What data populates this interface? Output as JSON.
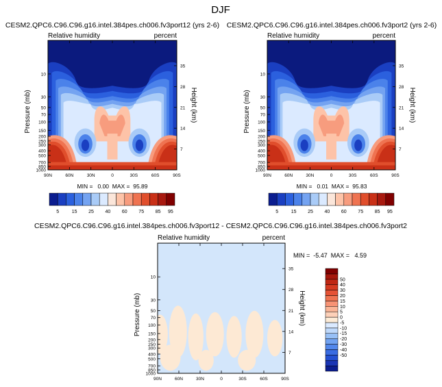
{
  "page": {
    "title": "DJF"
  },
  "colors": {
    "cb_top": [
      "#0b1d8f",
      "#1a3fc1",
      "#2b60de",
      "#4b82ea",
      "#74a3f1",
      "#a9cbf7",
      "#dbeaff",
      "#fbe6da",
      "#fdc3a8",
      "#f79c7e",
      "#ef7351",
      "#e04e2c",
      "#c93017",
      "#a8190f",
      "#800000"
    ],
    "cb_diff": [
      "#0b1d8f",
      "#1a35b5",
      "#2450d2",
      "#3a6ce2",
      "#5388ec",
      "#72a3f2",
      "#98c0f6",
      "#bfd9fb",
      "#dbeaff",
      "#fdebd6",
      "#fdd0b8",
      "#fbb597",
      "#f79375",
      "#ef7351",
      "#e55235",
      "#d53a20",
      "#bf2713",
      "#a6170c",
      "#800000"
    ],
    "field_dark": "#0b1a7e",
    "diff_bg": "#d3e6fb",
    "diff_pos": "#fde9d4"
  },
  "panels": {
    "left": {
      "title": "CESM2.QPC6.C96.C96.g16.intel.384pes.ch006.fv3port12 (yrs 2-6)",
      "left_string": "Relative humidity",
      "right_string": "percent",
      "stats": "MIN =   0.00  MAX =  95.89"
    },
    "right": {
      "title": "CESM2.QPC6.C96.C96.g16.intel.384pes.ch006.fv3port2 (yrs 2-6)",
      "left_string": "Relative humidity",
      "right_string": "percent",
      "stats": "MIN =   0.01  MAX =  95.83"
    },
    "diff": {
      "title": "CESM2.QPC6.C96.C96.g16.intel.384pes.ch006.fv3port12 - CESM2.QPC6.C96.C96.g16.intel.384pes.ch006.fv3port2",
      "left_string": "Relative humidity",
      "right_string": "percent",
      "stats": "MIN =  -5.47  MAX =   4.59"
    }
  },
  "axes": {
    "ylabel": "Pressure (mb)",
    "y2label": "Height (km)",
    "pressure_ticks": [
      "10",
      "30",
      "50",
      "70",
      "100",
      "150",
      "200",
      "250",
      "300",
      "400",
      "500",
      "700",
      "850",
      "1000"
    ],
    "height_ticks": [
      "35",
      "28",
      "21",
      "14",
      "7"
    ],
    "lat_ticks": [
      "90N",
      "60N",
      "30N",
      "0",
      "30S",
      "60S",
      "90S"
    ]
  },
  "colorbars": {
    "top_labels": [
      "5",
      "15",
      "25",
      "40",
      "60",
      "75",
      "85",
      "95"
    ],
    "diff_labels": [
      "50",
      "40",
      "30",
      "20",
      "15",
      "10",
      "5",
      "0",
      "-5",
      "-10",
      "-15",
      "-20",
      "-30",
      "-40",
      "-50"
    ]
  },
  "chart_data": [
    {
      "type": "heatmap",
      "title": "CESM2.QPC6.C96.C96.g16.intel.384pes.ch006.fv3port12 (yrs 2-6)",
      "xlabel": "",
      "ylabel": "Pressure (mb)",
      "y2label": "Height (km)",
      "x": [
        "90N",
        "60N",
        "30N",
        "0",
        "30S",
        "60S",
        "90S"
      ],
      "ylim": [
        1000,
        2
      ],
      "y_scale": "log",
      "contour_levels": [
        5,
        10,
        15,
        20,
        25,
        30,
        40,
        50,
        60,
        70,
        75,
        80,
        85,
        90,
        95
      ],
      "min": 0.0,
      "max": 95.89,
      "units": "percent"
    },
    {
      "type": "heatmap",
      "title": "CESM2.QPC6.C96.C96.g16.intel.384pes.ch006.fv3port2 (yrs 2-6)",
      "xlabel": "",
      "ylabel": "Pressure (mb)",
      "y2label": "Height (km)",
      "x": [
        "90N",
        "60N",
        "30N",
        "0",
        "30S",
        "60S",
        "90S"
      ],
      "ylim": [
        1000,
        2
      ],
      "y_scale": "log",
      "contour_levels": [
        5,
        10,
        15,
        20,
        25,
        30,
        40,
        50,
        60,
        70,
        75,
        80,
        85,
        90,
        95
      ],
      "min": 0.01,
      "max": 95.83,
      "units": "percent"
    },
    {
      "type": "heatmap",
      "title": "CESM2.QPC6.C96.C96.g16.intel.384pes.ch006.fv3port12 - CESM2.QPC6.C96.C96.g16.intel.384pes.ch006.fv3port2",
      "xlabel": "",
      "ylabel": "Pressure (mb)",
      "y2label": "Height (km)",
      "x": [
        "90N",
        "60N",
        "30N",
        "0",
        "30S",
        "60S",
        "90S"
      ],
      "ylim": [
        1000,
        2
      ],
      "y_scale": "log",
      "contour_levels": [
        -50,
        -40,
        -30,
        -20,
        -15,
        -10,
        -5,
        0,
        5,
        10,
        15,
        20,
        30,
        40,
        50
      ],
      "min": -5.47,
      "max": 4.59,
      "units": "percent"
    }
  ]
}
